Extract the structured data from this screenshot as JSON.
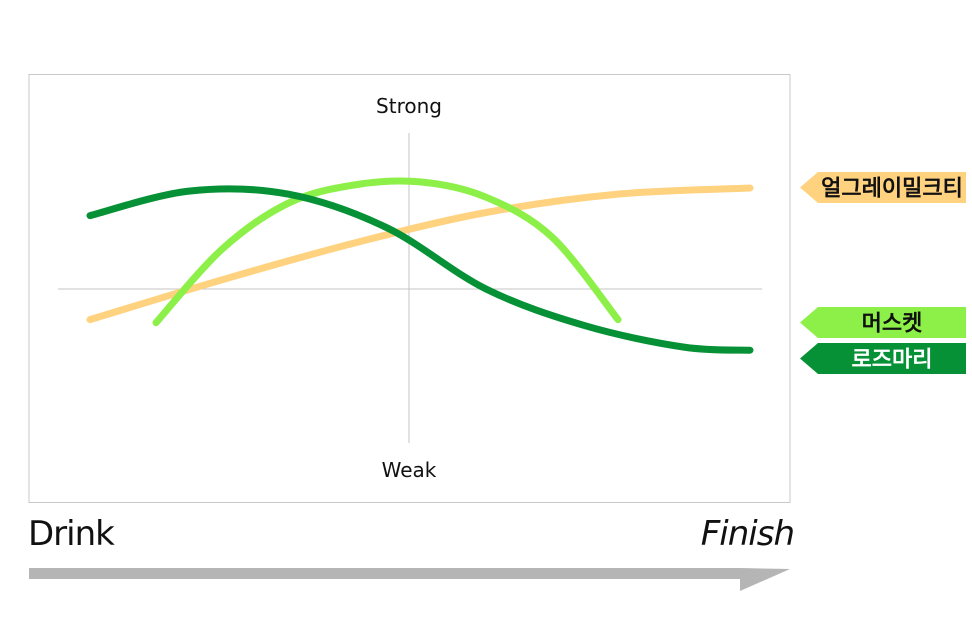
{
  "chart_data": {
    "type": "line",
    "y_top_label": "Strong",
    "y_bottom_label": "Weak",
    "x_start_label": "Drink",
    "x_end_label": "Finish",
    "xlim": [
      0,
      10
    ],
    "ylim": [
      -5,
      5
    ],
    "grid": false,
    "legend_position": "right",
    "series": [
      {
        "name": "얼그레이밀크티",
        "color": "#FFD27F",
        "legend_text_color": "#111111",
        "points": [
          [
            0,
            -1.0
          ],
          [
            2,
            0.3
          ],
          [
            4,
            1.5
          ],
          [
            6,
            2.5
          ],
          [
            8,
            3.1
          ],
          [
            10,
            3.3
          ]
        ]
      },
      {
        "name": "머스켓",
        "color": "#8CF048",
        "legend_text_color": "#111111",
        "points": [
          [
            1,
            -1.1
          ],
          [
            2,
            1.3
          ],
          [
            3,
            2.8
          ],
          [
            4,
            3.4
          ],
          [
            5,
            3.5
          ],
          [
            6,
            3.0
          ],
          [
            7,
            1.7
          ],
          [
            8,
            -1.0
          ]
        ]
      },
      {
        "name": "로즈마리",
        "color": "#079136",
        "legend_text_color": "#ffffff",
        "points": [
          [
            0,
            2.4
          ],
          [
            1.5,
            3.2
          ],
          [
            3,
            3.1
          ],
          [
            4.5,
            2.0
          ],
          [
            6,
            0.0
          ],
          [
            7.5,
            -1.2
          ],
          [
            9,
            -1.9
          ],
          [
            10,
            -2.0
          ]
        ]
      }
    ]
  }
}
